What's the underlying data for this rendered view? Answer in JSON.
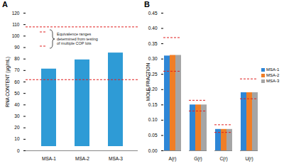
{
  "chart_data": [
    {
      "type": "bar",
      "title": "A",
      "y_label": "RNA CONTENT (µg/mL)",
      "categories": [
        "MSA-1",
        "MSA-2",
        "MSA-3"
      ],
      "values": [
        75,
        83,
        89
      ],
      "color": "#2e9bd6",
      "equivalence_range": [
        62,
        108
      ],
      "equivalence_color": "#e02020",
      "annotation": "Equivalence ranges determined from testing of multiple COP lots",
      "ylim": [
        0,
        120
      ],
      "yticks": [
        0,
        10,
        20,
        30,
        40,
        50,
        60,
        70,
        80,
        90,
        100,
        110,
        120
      ],
      "grid": false
    },
    {
      "type": "grouped_bar",
      "title": "B",
      "y_label": "MOLE FRACTION",
      "categories": [
        "A(r)",
        "G(r)",
        "C(r)",
        "U(r)"
      ],
      "series": [
        {
          "name": "MSA-1",
          "color": "#2e86d6",
          "values": [
            0.31,
            0.15,
            0.07,
            0.19
          ]
        },
        {
          "name": "MSA-2",
          "color": "#f07e26",
          "values": [
            0.312,
            0.15,
            0.07,
            0.19
          ]
        },
        {
          "name": "MSA-3",
          "color": "#a5a5a5",
          "values": [
            0.312,
            0.15,
            0.07,
            0.19
          ]
        }
      ],
      "equivalence_ranges": [
        [
          0.26,
          0.37
        ],
        [
          0.13,
          0.165
        ],
        [
          0.06,
          0.085
        ],
        [
          0.17,
          0.235
        ]
      ],
      "equivalence_color": "#e02020",
      "ylim": [
        0,
        0.45
      ],
      "yticks": [
        {
          "value": 0,
          "label": "0.00"
        },
        {
          "value": 0.05,
          "label": "0.05"
        },
        {
          "value": 0.1,
          "label": "0.10"
        },
        {
          "value": 0.15,
          "label": "0.15"
        },
        {
          "value": 0.2,
          "label": "0.20"
        },
        {
          "value": 0.25,
          "label": "0.25"
        },
        {
          "value": 0.3,
          "label": "0.30"
        },
        {
          "value": 0.35,
          "label": "0.35"
        },
        {
          "value": 0.4,
          "label": "0.40"
        },
        {
          "value": 0.45,
          "label": "0.45"
        }
      ],
      "legend": "right",
      "grid": false
    }
  ]
}
